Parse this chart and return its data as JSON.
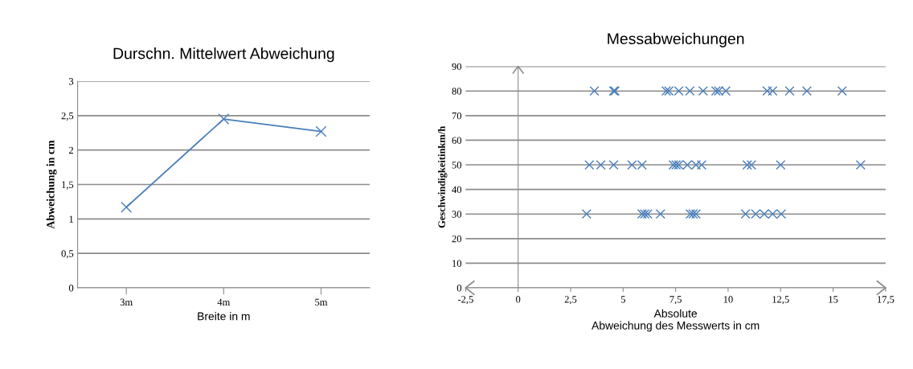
{
  "chart_data": [
    {
      "type": "line",
      "title": "Durschn. Mittelwert Abweichung",
      "xlabel": "Breite in m",
      "ylabel": "Abweichung in cm",
      "categories": [
        "3m",
        "4m",
        "5m"
      ],
      "series": [
        {
          "color": "#4a7ebb",
          "values": [
            1.17,
            2.45,
            2.27
          ]
        }
      ],
      "ylim": [
        0,
        3
      ],
      "yticks": [
        0,
        {
          "value": 0.5,
          "label": "0,5"
        },
        1,
        {
          "value": 1.5,
          "label": "1,5"
        },
        2,
        {
          "value": 2.5,
          "label": "2,5"
        },
        3
      ],
      "grid": "y",
      "legend": false,
      "marker": "cross",
      "line_style": "solid"
    },
    {
      "type": "scatter",
      "title": "Messabweichungen",
      "xlabel": "Absolute\nAbweichung des Messwerts in cm",
      "ylabel": "Geschwindigkeitinkm/h",
      "series": [
        {
          "color": "#4a7ebb",
          "x": [
            3.63,
            4.55,
            4.61,
            7.05,
            7.18,
            7.65,
            8.18,
            8.81,
            9.42,
            9.55,
            9.89,
            11.86,
            12.12,
            12.93,
            13.75,
            15.43
          ],
          "values": [
            80,
            80,
            80,
            80,
            80,
            80,
            80,
            80,
            80,
            80,
            80,
            80,
            80,
            80,
            80,
            80
          ]
        },
        {
          "color": "#4a7ebb",
          "x": [
            3.39,
            3.94,
            4.55,
            5.42,
            5.9,
            7.39,
            7.52,
            7.65,
            8.06,
            8.47,
            8.74,
            10.91,
            11.11,
            12.5,
            16.31
          ],
          "values": [
            50,
            50,
            50,
            50,
            50,
            50,
            50,
            50,
            50,
            50,
            50,
            50,
            50,
            50,
            50
          ]
        },
        {
          "color": "#4a7ebb",
          "x": [
            3.26,
            5.9,
            6.03,
            6.17,
            6.78,
            8.2,
            8.33,
            8.47,
            10.83,
            11.31,
            11.72,
            12.12,
            12.53
          ],
          "values": [
            30,
            30,
            30,
            30,
            30,
            30,
            30,
            30,
            30,
            30,
            30,
            30,
            30
          ]
        }
      ],
      "xlim": [
        -2.5,
        17.5
      ],
      "xticks": [
        {
          "value": -2.5,
          "label": "-2,5"
        },
        0,
        {
          "value": 2.5,
          "label": "2,5"
        },
        5,
        {
          "value": 7.5,
          "label": "7,5"
        },
        10,
        {
          "value": 12.5,
          "label": "12,5"
        },
        15,
        {
          "value": 17.5,
          "label": "17,5"
        }
      ],
      "ylim": [
        0,
        90
      ],
      "yticks": [
        0,
        10,
        20,
        30,
        40,
        50,
        60,
        70,
        80,
        90
      ],
      "grid": "y",
      "legend": false,
      "marker": "cross"
    }
  ]
}
